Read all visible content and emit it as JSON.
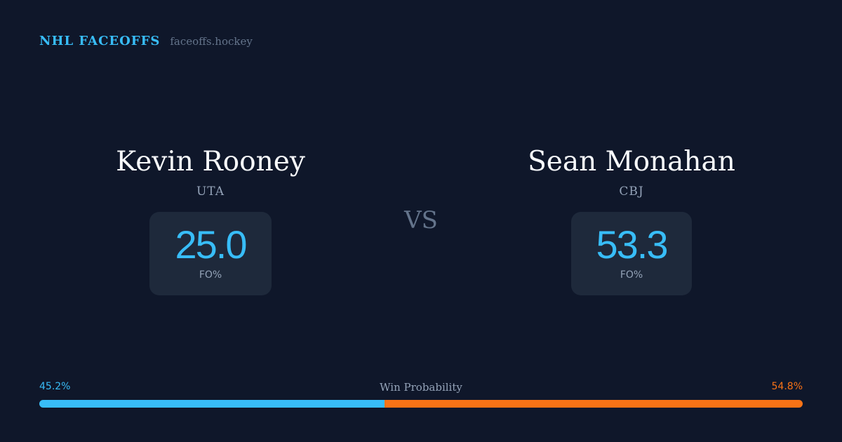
{
  "brand": {
    "title": "NHL FACEOFFS",
    "site": "faceoffs.hockey"
  },
  "players": {
    "left": {
      "name": "Kevin Rooney",
      "team": "UTA",
      "fo_value": "25.0",
      "fo_label": "FO%"
    },
    "right": {
      "name": "Sean Monahan",
      "team": "CBJ",
      "fo_value": "53.3",
      "fo_label": "FO%"
    }
  },
  "vs_label": "VS",
  "win_probability": {
    "label": "Win Probability",
    "left_text": "45.2%",
    "right_text": "54.8%",
    "left_value": 45.2,
    "right_value": 54.8
  },
  "colors": {
    "background": "#0f172a",
    "card": "#1e293b",
    "accent_blue": "#38bdf8",
    "accent_orange": "#f97316",
    "muted": "#94a3b8"
  }
}
